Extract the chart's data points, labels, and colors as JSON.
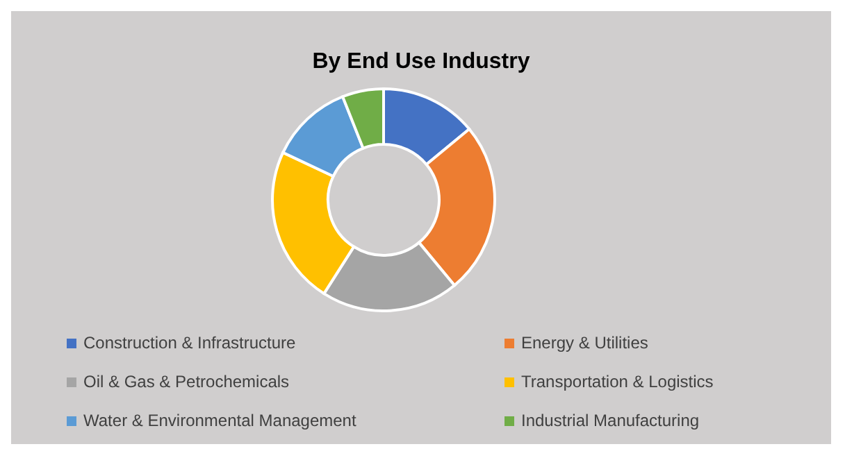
{
  "chart_data": {
    "type": "donut",
    "title": "By End Use Industry",
    "categories": [
      "Construction & Infrastructure",
      "Energy & Utilities",
      "Oil & Gas & Petrochemicals",
      "Transportation & Logistics",
      "Water & Environmental Management",
      "Industrial Manufacturing"
    ],
    "values": [
      14,
      25,
      20,
      23,
      12,
      6
    ],
    "colors": [
      "#4472c4",
      "#ed7d31",
      "#a5a5a5",
      "#ffc000",
      "#5b9bd5",
      "#70ad47"
    ],
    "legend": "bottom"
  }
}
